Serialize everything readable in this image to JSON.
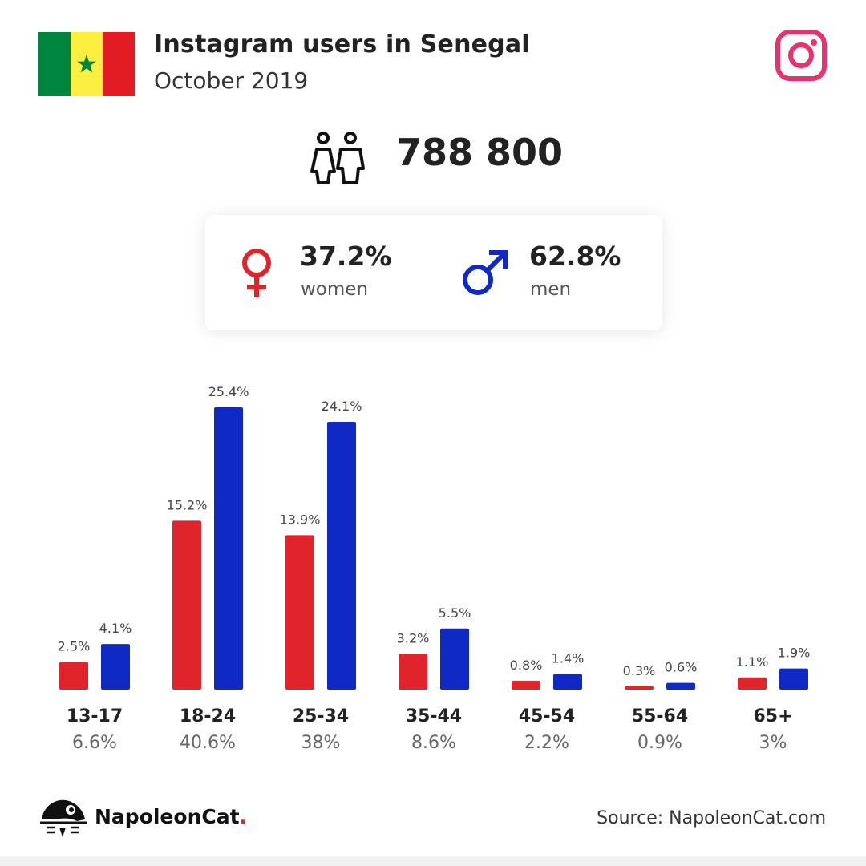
{
  "header": {
    "title": "Instagram users in Senegal",
    "subtitle": "October 2019",
    "flag_colors": [
      "#00853f",
      "#fdef42",
      "#e31b23"
    ],
    "icons": [
      "senegal-flag",
      "instagram-icon"
    ]
  },
  "summary": {
    "total": "788 800",
    "women_pct": "37.2%",
    "women_label": "women",
    "men_pct": "62.8%",
    "men_label": "men",
    "women_color": "#e0242b",
    "men_color": "#0f2ac4"
  },
  "chart_data": {
    "type": "bar",
    "categories": [
      "13-17",
      "18-24",
      "25-34",
      "35-44",
      "45-54",
      "55-64",
      "65+"
    ],
    "category_totals": [
      "6.6%",
      "40.6%",
      "38%",
      "8.6%",
      "2.2%",
      "0.9%",
      "3%"
    ],
    "series": [
      {
        "color": "#e0242b",
        "values": [
          2.5,
          15.2,
          13.9,
          3.2,
          0.8,
          0.3,
          1.1
        ],
        "labels": [
          "2.5%",
          "15.2%",
          "13.9%",
          "3.2%",
          "0.8%",
          "0.3%",
          "1.1%"
        ]
      },
      {
        "color": "#0f2ac4",
        "values": [
          4.1,
          25.4,
          24.1,
          5.5,
          1.4,
          0.6,
          1.9
        ],
        "labels": [
          "4.1%",
          "25.4%",
          "24.1%",
          "5.5%",
          "1.4%",
          "0.6%",
          "1.9%"
        ]
      }
    ],
    "ylim": [
      0,
      25.4
    ],
    "grid": false
  },
  "footer": {
    "brand": "NapoleonCat",
    "brand_dot": ".",
    "source": "Source: NapoleonCat.com"
  }
}
